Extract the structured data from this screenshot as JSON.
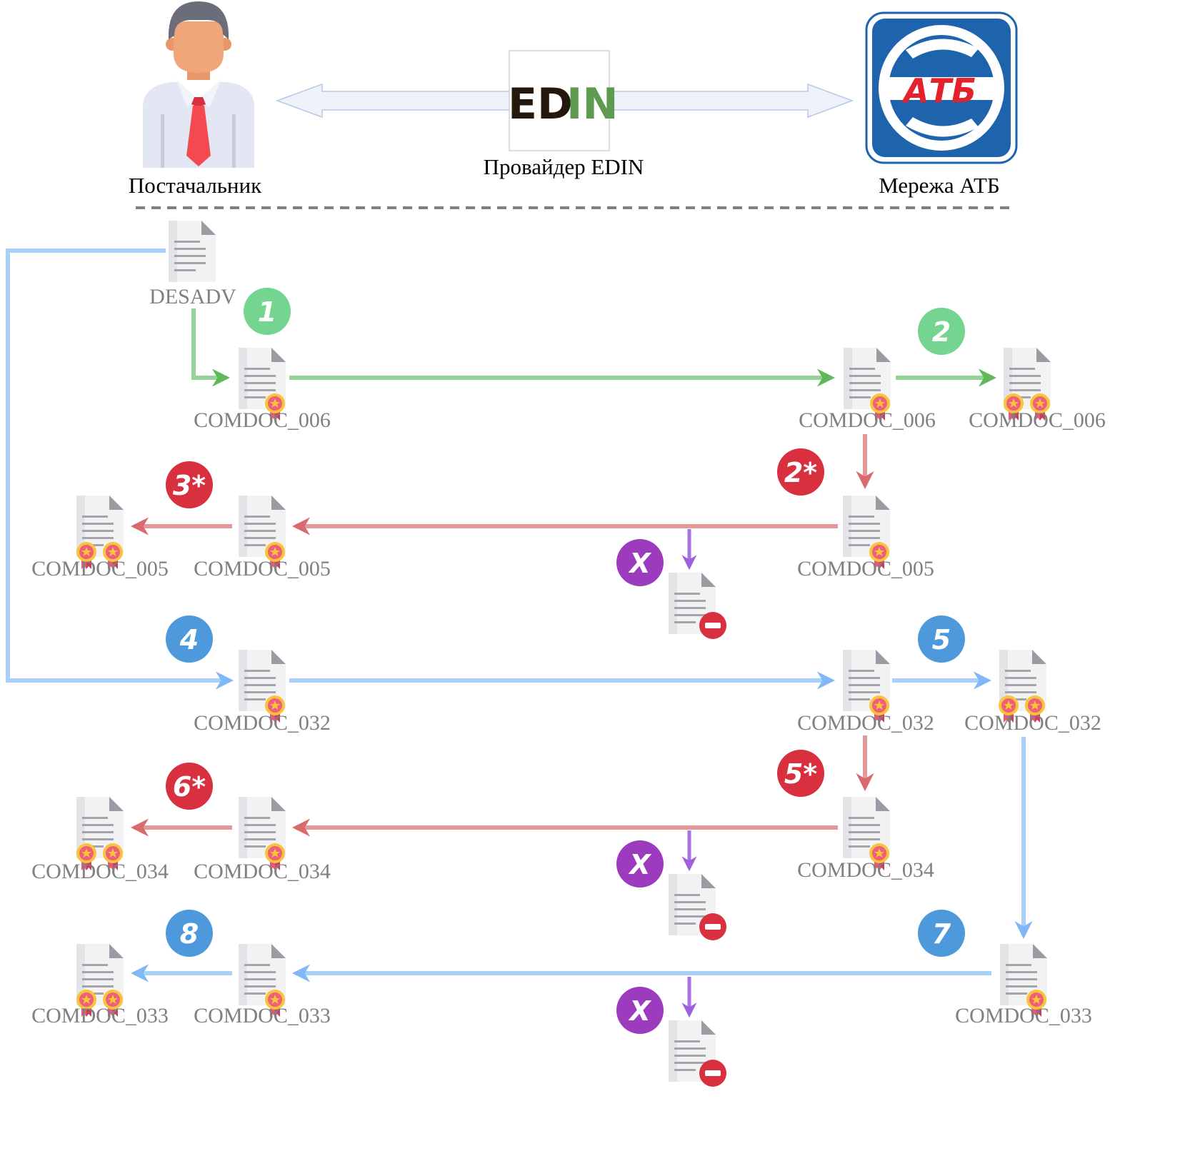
{
  "actors": {
    "supplier": "Постачальник",
    "provider": "Провайдер EDIN",
    "network": "Мережа АТБ"
  },
  "logos": {
    "edin_left": "ED",
    "edin_right": "IN",
    "atb": "АТБ"
  },
  "colors": {
    "green": "#97d396",
    "red": "#e3989a",
    "blue": "#a9d0fb",
    "purple": "#a872e3",
    "badge_green": "#73d58f",
    "badge_red": "#d9303f",
    "badge_blue": "#4d99dc",
    "badge_purple": "#9d3bbf",
    "label_gray": "#808080",
    "divider": "#808080",
    "atb_blue": "#1e64ad",
    "atb_red": "#e4222e",
    "edin_dark": "#24180d",
    "edin_green": "#5e9a4f"
  },
  "documents": {
    "desadv": "DESADV",
    "row1": {
      "supplier": "COMDOC_006",
      "provider": "COMDOC_006",
      "network": "COMDOC_006"
    },
    "row2": {
      "provider": "COMDOC_005",
      "supplier": "COMDOC_005",
      "final": "COMDOC_005"
    },
    "row3": {
      "supplier": "COMDOC_032",
      "provider": "COMDOC_032",
      "network": "COMDOC_032"
    },
    "row4": {
      "provider": "COMDOC_034",
      "supplier": "COMDOC_034",
      "final": "COMDOC_034"
    },
    "row5": {
      "network": "COMDOC_033",
      "supplier": "COMDOC_033",
      "final": "COMDOC_033"
    }
  },
  "steps": {
    "s1": "1",
    "s2": "2",
    "s2r": "2*",
    "s3r": "3*",
    "x1": "X",
    "s4": "4",
    "s5": "5",
    "s5r": "5*",
    "s6r": "6*",
    "x2": "X",
    "s7": "7",
    "s8": "8",
    "x3": "X"
  }
}
